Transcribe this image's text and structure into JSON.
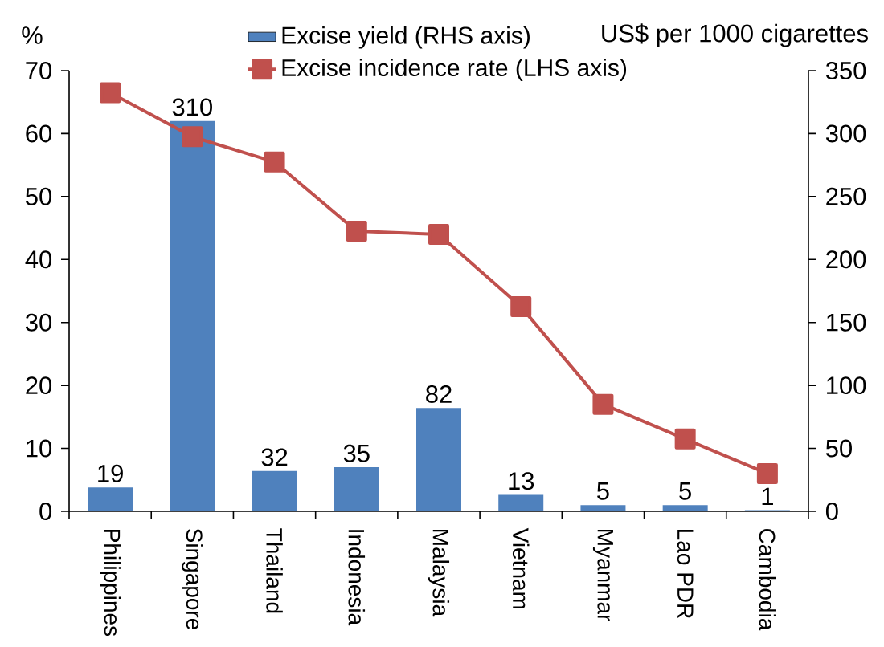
{
  "chart_data": {
    "type": "bar",
    "categories": [
      "Philippines",
      "Singapore",
      "Thailand",
      "Indonesia",
      "Malaysia",
      "Vietnam",
      "Myanmar",
      "Lao PDR",
      "Cambodia"
    ],
    "series": [
      {
        "name": "Excise yield (RHS axis)",
        "color": "#4f81bd",
        "axis": "y2",
        "values": [
          19,
          310,
          32,
          35,
          82,
          13,
          5,
          5,
          1
        ],
        "value_labels": [
          "19",
          "310",
          "32",
          "35",
          "82",
          "13",
          "5",
          "5",
          "1"
        ]
      },
      {
        "name": "Excise incidence rate (LHS axis)",
        "type": "line",
        "color": "#c0504d",
        "values": [
          66.5,
          59.5,
          55.5,
          44.5,
          44,
          32.5,
          17,
          11.5,
          6
        ]
      }
    ],
    "ylabel": "%",
    "y2label": "US$ per 1000 cigarettes",
    "ylim": [
      0,
      70
    ],
    "yticks": [
      0,
      10,
      20,
      30,
      40,
      50,
      60,
      70
    ],
    "y2lim": [
      0,
      350
    ],
    "y2ticks": [
      0,
      50,
      100,
      150,
      200,
      250,
      300,
      350
    ],
    "marker": "square",
    "legend": "top"
  }
}
